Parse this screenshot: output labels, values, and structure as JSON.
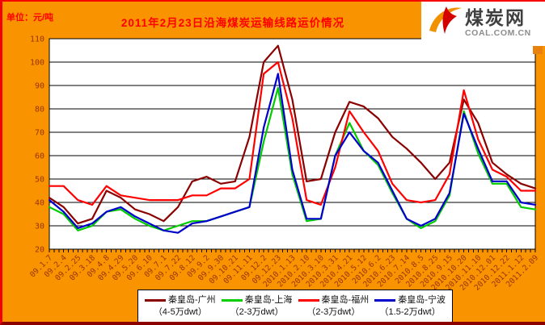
{
  "header": {
    "unit_label": "单位：元/吨",
    "title": "2011年2月23日沿海煤炭运输线路运价情况"
  },
  "logo": {
    "name": "煤炭网",
    "url": "COAL.COM.CN"
  },
  "colors": {
    "background": "#F99400",
    "border_left_top": "#F50000",
    "border_bottom": "#8B0000",
    "plot_bg": "#FFFFFF",
    "gridline": "#000000",
    "axis_text": "#993300",
    "title_text": "#FF0000"
  },
  "chart_data": {
    "type": "line",
    "title": "2011年2月23日沿海煤炭运输线路运价情况",
    "ylabel": "元/吨",
    "ylim": [
      20,
      110
    ],
    "ytick_step": 10,
    "grid": true,
    "legend_position": "bottom",
    "categories": [
      "09.1.7",
      "09.2.4",
      "09.2.25",
      "09.3.18",
      "09.4.8",
      "09.4.29",
      "09.5.20",
      "09.6.10",
      "09.7.1",
      "09.7.22",
      "09.8.12",
      "09.9.2",
      "09.9.30",
      "09.10.21",
      "09.11.11",
      "09.12.2",
      "09.12.23",
      "2010.1.13",
      "2010.2.10",
      "2010.3.10",
      "2010.3.31",
      "2010.4.21",
      "2010.5.12",
      "2010.6.2",
      "2010.6.23",
      "2010.7.14",
      "2010.8.5",
      "2010.8.25",
      "2010.9.15",
      "2010.10.20",
      "2010.11.10",
      "2010.12.01",
      "2010.12.22",
      "2011.1.12",
      "2011.2.09"
    ],
    "series": [
      {
        "id": "guangzhou",
        "name": "秦皇岛-广州",
        "dwt": "（4-5万dwt）",
        "color": "#8B0000",
        "values": [
          42,
          38,
          31,
          33,
          45,
          42,
          37,
          35,
          32,
          38,
          49,
          51,
          48,
          49,
          68,
          100,
          107,
          84,
          49,
          50,
          70,
          83,
          81,
          76,
          68,
          63,
          57,
          50,
          57,
          84,
          74,
          57,
          52,
          48,
          46
        ]
      },
      {
        "id": "shanghai",
        "name": "秦皇岛-上海",
        "dwt": "（2-3万dwt）",
        "color": "#00CC00",
        "values": [
          38,
          35,
          28,
          30,
          36,
          37,
          33,
          30,
          28,
          30,
          32,
          32,
          34,
          36,
          38,
          66,
          89,
          52,
          32,
          33,
          60,
          74,
          62,
          56,
          44,
          33,
          29,
          32,
          43,
          79,
          61,
          48,
          48,
          38,
          37
        ]
      },
      {
        "id": "fuzhou",
        "name": "秦皇岛-福州",
        "dwt": "（2-3万dwt）",
        "color": "#FF0000",
        "values": [
          47,
          47,
          41,
          39,
          47,
          43,
          42,
          41,
          41,
          41,
          43,
          43,
          46,
          46,
          50,
          95,
          100,
          76,
          41,
          39,
          55,
          79,
          70,
          62,
          48,
          41,
          40,
          41,
          52,
          88,
          67,
          54,
          51,
          45,
          45
        ]
      },
      {
        "id": "ningbo",
        "name": "秦皇岛-宁波",
        "dwt": "（1.5-2万dwt）",
        "color": "#0000CC",
        "values": [
          41,
          36,
          29,
          31,
          36,
          38,
          34,
          31,
          28,
          27,
          31,
          32,
          34,
          36,
          38,
          72,
          95,
          54,
          33,
          33,
          60,
          70,
          62,
          57,
          45,
          33,
          30,
          33,
          44,
          78,
          63,
          49,
          49,
          40,
          39
        ]
      }
    ]
  }
}
